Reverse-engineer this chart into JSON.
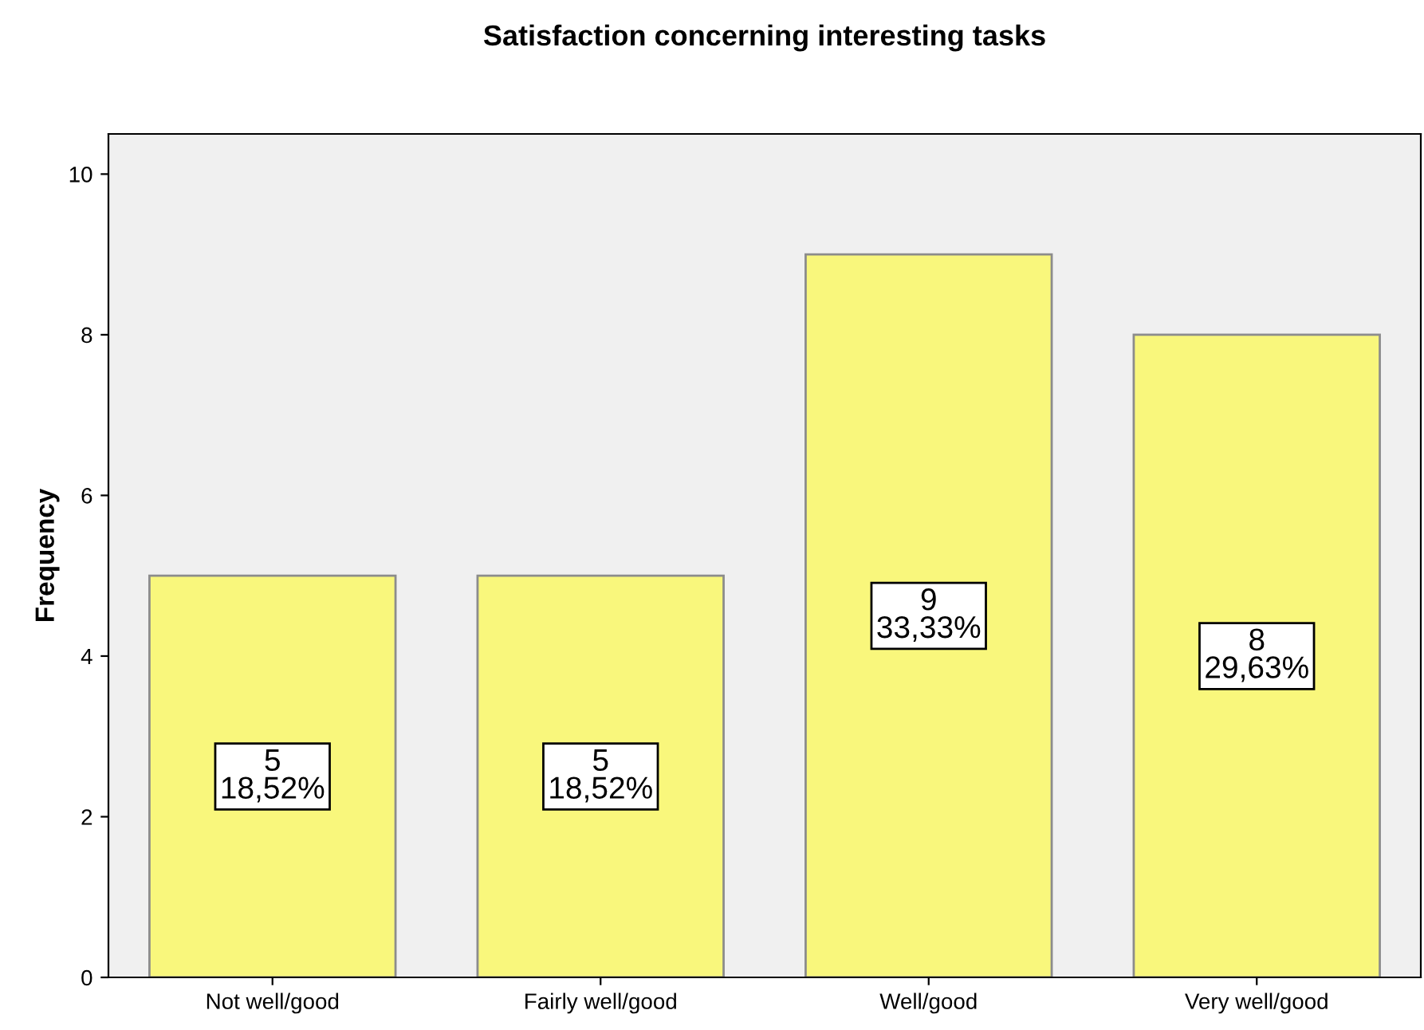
{
  "chart_data": {
    "type": "bar",
    "title": "Satisfaction concerning interesting tasks",
    "ylabel": "Frequency",
    "categories": [
      "Not well/good",
      "Fairly well/good",
      "Well/good",
      "Very well/good"
    ],
    "values": [
      5,
      5,
      9,
      8
    ],
    "value_labels": [
      "5\n18,52%",
      "5\n18,52%",
      "9\n33,33%",
      "8\n29,63%"
    ],
    "color": "#f9f77c",
    "ylim": [
      0,
      10.5
    ],
    "yticks": [
      0,
      2,
      4,
      6,
      8,
      10
    ]
  }
}
